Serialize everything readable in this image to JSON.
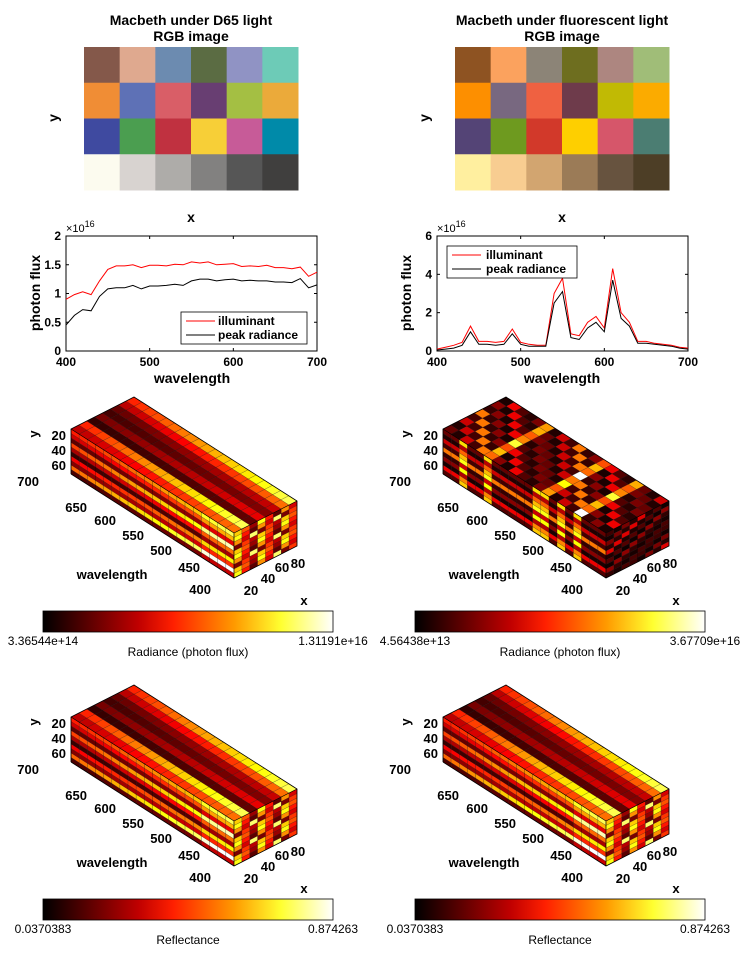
{
  "chart_data": [
    {
      "type": "heatmap",
      "title": "Macbeth under D65 light",
      "subtitle": "RGB image",
      "xlabel": "x",
      "ylabel": "y",
      "rows": 4,
      "cols": 6,
      "colors": [
        [
          "#84584a",
          "#dfa98f",
          "#6c8bb0",
          "#5b6c43",
          "#9093c4",
          "#6dcbb7"
        ],
        [
          "#f08d35",
          "#5e71b6",
          "#d95e67",
          "#683e72",
          "#a4bf43",
          "#ebaa3a"
        ],
        [
          "#3f4aa0",
          "#4b9e50",
          "#c03140",
          "#f7cf37",
          "#c75b98",
          "#008aa9"
        ],
        [
          "#fcfbef",
          "#d8d3d0",
          "#aeaca9",
          "#828180",
          "#565656",
          "#403f3e"
        ]
      ]
    },
    {
      "type": "heatmap",
      "title": "Macbeth under fluorescent light",
      "subtitle": "RGB image",
      "xlabel": "x",
      "ylabel": "y",
      "rows": 4,
      "cols": 6,
      "colors": [
        [
          "#8e5322",
          "#fba25e",
          "#8c8477",
          "#6e6e1f",
          "#ad8680",
          "#a0bd78"
        ],
        [
          "#fd8f00",
          "#786880",
          "#ef6141",
          "#6e3b4b",
          "#c1ba04",
          "#fbab00"
        ],
        [
          "#544476",
          "#6e9a1f",
          "#d2392a",
          "#fecf00",
          "#d6566a",
          "#4b7d72"
        ],
        [
          "#ffef9f",
          "#f8cd91",
          "#d2a570",
          "#9b7b57",
          "#67533f",
          "#4d3e26"
        ]
      ]
    },
    {
      "type": "line",
      "xlabel": "wavelength",
      "ylabel": "photon flux",
      "exponent": "×10^16",
      "xlim": [
        400,
        700
      ],
      "ylim": [
        0,
        2
      ],
      "xticks": [
        "400",
        "500",
        "600",
        "700"
      ],
      "yticks": [
        "0",
        "0.5",
        "1",
        "1.5",
        "2"
      ],
      "legend": "bottom-right",
      "x": [
        400,
        410,
        420,
        430,
        440,
        450,
        460,
        470,
        480,
        490,
        500,
        510,
        520,
        530,
        540,
        550,
        560,
        570,
        580,
        590,
        600,
        610,
        620,
        630,
        640,
        650,
        660,
        670,
        680,
        690,
        700
      ],
      "series": [
        {
          "name": "illuminant",
          "color": "#ff0000",
          "values": [
            0.9,
            0.98,
            1.03,
            0.98,
            1.22,
            1.42,
            1.48,
            1.48,
            1.5,
            1.45,
            1.49,
            1.49,
            1.48,
            1.51,
            1.5,
            1.55,
            1.53,
            1.55,
            1.5,
            1.51,
            1.52,
            1.47,
            1.48,
            1.47,
            1.49,
            1.45,
            1.45,
            1.43,
            1.46,
            1.3,
            1.37
          ]
        },
        {
          "name": "peak radiance",
          "color": "#000000",
          "values": [
            0.45,
            0.62,
            0.72,
            0.7,
            0.95,
            1.08,
            1.1,
            1.1,
            1.14,
            1.08,
            1.13,
            1.13,
            1.14,
            1.16,
            1.14,
            1.22,
            1.25,
            1.25,
            1.22,
            1.24,
            1.25,
            1.22,
            1.23,
            1.22,
            1.22,
            1.2,
            1.2,
            1.19,
            1.26,
            1.1,
            1.15
          ]
        }
      ]
    },
    {
      "type": "line",
      "xlabel": "wavelength",
      "ylabel": "photon flux",
      "exponent": "×10^16",
      "xlim": [
        400,
        700
      ],
      "ylim": [
        0,
        6
      ],
      "xticks": [
        "400",
        "500",
        "600",
        "700"
      ],
      "yticks": [
        "0",
        "2",
        "4",
        "6"
      ],
      "legend": "top-left",
      "x": [
        400,
        410,
        420,
        430,
        440,
        450,
        460,
        470,
        480,
        490,
        500,
        510,
        520,
        530,
        540,
        550,
        560,
        570,
        580,
        590,
        600,
        610,
        620,
        630,
        640,
        650,
        660,
        670,
        680,
        690,
        700
      ],
      "series": [
        {
          "name": "illuminant",
          "color": "#ff0000",
          "values": [
            0.1,
            0.2,
            0.3,
            0.45,
            1.3,
            0.5,
            0.5,
            0.45,
            0.5,
            1.15,
            0.45,
            0.35,
            0.3,
            0.3,
            3.0,
            3.8,
            0.9,
            0.8,
            1.5,
            1.8,
            1.2,
            4.3,
            2.0,
            1.5,
            0.5,
            0.5,
            0.4,
            0.35,
            0.3,
            0.2,
            0.15
          ]
        },
        {
          "name": "peak radiance",
          "color": "#000000",
          "values": [
            0.05,
            0.1,
            0.15,
            0.3,
            1.0,
            0.35,
            0.35,
            0.3,
            0.35,
            0.9,
            0.35,
            0.25,
            0.25,
            0.25,
            2.5,
            3.1,
            0.7,
            0.6,
            1.2,
            1.5,
            1.0,
            3.7,
            1.7,
            1.3,
            0.4,
            0.4,
            0.35,
            0.3,
            0.25,
            0.15,
            0.1
          ]
        }
      ]
    },
    {
      "type": "heatmap",
      "view": "3d-cube",
      "xlabel": "x",
      "ylabel": "y",
      "zlabel": "wavelength",
      "yticks": [
        "20",
        "40",
        "60"
      ],
      "xticks": [
        "20",
        "40",
        "60",
        "80"
      ],
      "zticks": [
        "700",
        "650",
        "600",
        "550",
        "500",
        "450",
        "400"
      ],
      "colorbar": {
        "label": "Radiance (photon flux)",
        "min": "3.36544e+14",
        "max": "1.31191e+16"
      }
    },
    {
      "type": "heatmap",
      "view": "3d-cube",
      "xlabel": "x",
      "ylabel": "y",
      "zlabel": "wavelength",
      "yticks": [
        "20",
        "40",
        "60"
      ],
      "xticks": [
        "20",
        "40",
        "60",
        "80"
      ],
      "zticks": [
        "700",
        "650",
        "600",
        "550",
        "500",
        "450",
        "400"
      ],
      "colorbar": {
        "label": "Radiance (photon flux)",
        "min": "4.56438e+13",
        "max": "3.67709e+16"
      }
    },
    {
      "type": "heatmap",
      "view": "3d-cube",
      "xlabel": "x",
      "ylabel": "y",
      "zlabel": "wavelength",
      "yticks": [
        "20",
        "40",
        "60"
      ],
      "xticks": [
        "20",
        "40",
        "60",
        "80"
      ],
      "zticks": [
        "700",
        "650",
        "600",
        "550",
        "500",
        "450",
        "400"
      ],
      "colorbar": {
        "label": "Reflectance",
        "min": "0.0370383",
        "max": "0.874263"
      }
    },
    {
      "type": "heatmap",
      "view": "3d-cube",
      "xlabel": "x",
      "ylabel": "y",
      "zlabel": "wavelength",
      "yticks": [
        "20",
        "40",
        "60"
      ],
      "xticks": [
        "20",
        "40",
        "60",
        "80"
      ],
      "zticks": [
        "700",
        "650",
        "600",
        "550",
        "500",
        "450",
        "400"
      ],
      "colorbar": {
        "label": "Reflectance",
        "min": "0.0370383",
        "max": "0.874263"
      }
    }
  ]
}
